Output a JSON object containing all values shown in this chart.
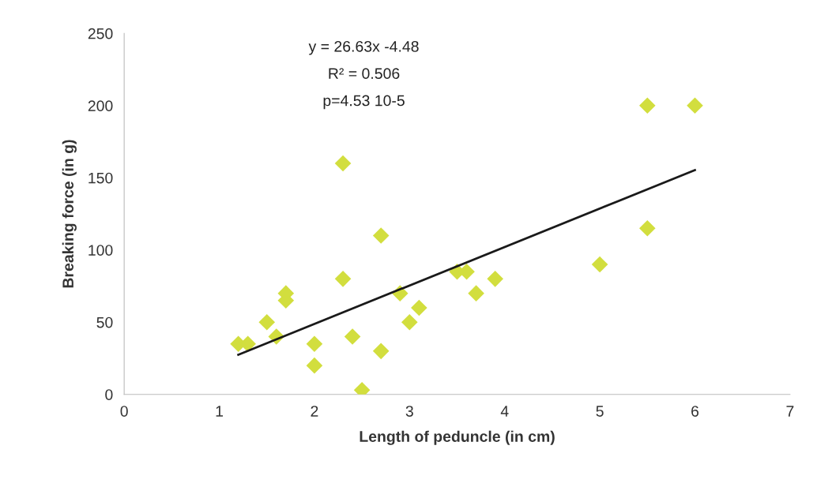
{
  "chart_data": {
    "type": "scatter",
    "xlabel": "Length of peduncle (in cm)",
    "ylabel": "Breaking force (in g)",
    "annotations": [
      "y = 26.63x -4.48",
      "R² = 0.506",
      "p=4.53 10-5"
    ],
    "series": [
      {
        "color": "#d2de3e",
        "marker": "diamond",
        "x": [
          1.2,
          1.3,
          1.5,
          1.6,
          1.7,
          1.7,
          2.0,
          2.0,
          2.3,
          2.3,
          2.4,
          2.5,
          2.7,
          2.7,
          2.9,
          3.0,
          3.1,
          3.5,
          3.6,
          3.7,
          3.9,
          5.0,
          5.5,
          5.5,
          6.0
        ],
        "values": [
          35,
          35,
          50,
          40,
          65,
          70,
          35,
          20,
          160,
          80,
          40,
          3,
          110,
          30,
          70,
          50,
          60,
          85,
          85,
          70,
          80,
          90,
          200,
          115,
          200
        ]
      },
      {
        "type": "line",
        "color": "#1a1a1a",
        "marker": "none",
        "x": [
          1.2,
          6.0
        ],
        "values": [
          27.5,
          155.3
        ]
      }
    ],
    "xlim": [
      0,
      7
    ],
    "xticks": [
      0,
      1,
      2,
      3,
      4,
      5,
      6,
      7
    ],
    "ylim": [
      0,
      250
    ],
    "yticks": [
      0,
      50,
      100,
      150,
      200,
      250
    ],
    "grid": false,
    "legend": false
  }
}
